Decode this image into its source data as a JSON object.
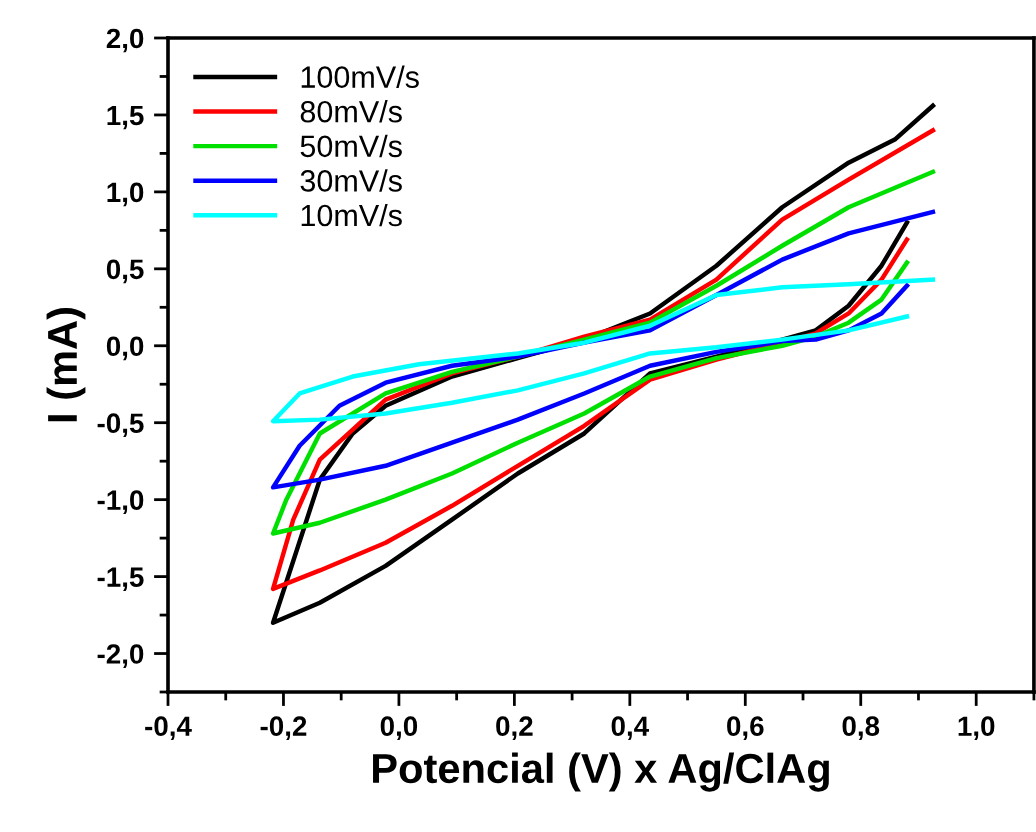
{
  "chart_data": {
    "type": "line",
    "xlabel": "Potencial (V) x Ag/ClAg",
    "ylabel": "I (mA)",
    "xlim": [
      -0.4,
      1.1
    ],
    "ylim": [
      -2.25,
      2.0
    ],
    "xticks": [
      {
        "value": -0.4,
        "label": "-0,4"
      },
      {
        "value": -0.2,
        "label": "-0,2"
      },
      {
        "value": 0.0,
        "label": "0,0"
      },
      {
        "value": 0.2,
        "label": "0,2"
      },
      {
        "value": 0.4,
        "label": "0,4"
      },
      {
        "value": 0.6,
        "label": "0,6"
      },
      {
        "value": 0.8,
        "label": "0,8"
      },
      {
        "value": 1.0,
        "label": "1,0"
      }
    ],
    "yticks": [
      {
        "value": -2.0,
        "label": "-2,0"
      },
      {
        "value": -1.5,
        "label": "-1,5"
      },
      {
        "value": -1.0,
        "label": "-1,0"
      },
      {
        "value": -0.5,
        "label": "-0,5"
      },
      {
        "value": 0.0,
        "label": "0,0"
      },
      {
        "value": 0.5,
        "label": "0,5"
      },
      {
        "value": 1.0,
        "label": "1,0"
      },
      {
        "value": 1.5,
        "label": "1,5"
      },
      {
        "value": 2.0,
        "label": "2,0"
      }
    ],
    "legend": "top left",
    "grid": false,
    "marker": "none",
    "line_style": "solid",
    "series": [
      {
        "name": "100mV/s",
        "color": "#000000",
        "x": [
          0.88,
          0.836,
          0.779,
          0.722,
          0.664,
          0.55,
          0.435,
          0.321,
          0.206,
          0.092,
          -0.023,
          -0.137,
          -0.218,
          -0.137,
          -0.08,
          -0.023,
          0.092,
          0.206,
          0.321,
          0.435,
          0.55,
          0.664,
          0.779,
          0.859,
          0.925
        ],
        "values": [
          0.8,
          0.52,
          0.26,
          0.1,
          0.04,
          -0.07,
          -0.18,
          -0.57,
          -0.83,
          -1.13,
          -1.43,
          -1.67,
          -1.8,
          -0.87,
          -0.57,
          -0.39,
          -0.2,
          -0.08,
          0.04,
          0.21,
          0.52,
          0.9,
          1.19,
          1.34,
          1.56
        ]
      },
      {
        "name": "80mV/s",
        "color": "#ff0000",
        "x": [
          0.88,
          0.836,
          0.779,
          0.722,
          0.664,
          0.55,
          0.435,
          0.321,
          0.206,
          0.092,
          -0.023,
          -0.137,
          -0.218,
          -0.183,
          -0.137,
          -0.023,
          0.092,
          0.206,
          0.321,
          0.435,
          0.55,
          0.664,
          0.779,
          0.925
        ],
        "values": [
          0.69,
          0.43,
          0.21,
          0.08,
          0.02,
          -0.09,
          -0.22,
          -0.52,
          -0.78,
          -1.04,
          -1.28,
          -1.46,
          -1.58,
          -1.13,
          -0.74,
          -0.35,
          -0.18,
          -0.07,
          0.06,
          0.17,
          0.43,
          0.82,
          1.08,
          1.4
        ]
      },
      {
        "name": "50mV/s",
        "color": "#00e000",
        "x": [
          0.88,
          0.836,
          0.779,
          0.722,
          0.664,
          0.55,
          0.435,
          0.321,
          0.206,
          0.092,
          -0.023,
          -0.137,
          -0.218,
          -0.195,
          -0.137,
          -0.023,
          0.092,
          0.206,
          0.321,
          0.435,
          0.55,
          0.664,
          0.779,
          0.925
        ],
        "values": [
          0.54,
          0.3,
          0.15,
          0.06,
          0.0,
          -0.08,
          -0.2,
          -0.44,
          -0.63,
          -0.83,
          -1.0,
          -1.15,
          -1.22,
          -1.0,
          -0.57,
          -0.31,
          -0.17,
          -0.07,
          0.04,
          0.15,
          0.39,
          0.65,
          0.9,
          1.13
        ]
      },
      {
        "name": "30mV/s",
        "color": "#0000ff",
        "x": [
          0.88,
          0.836,
          0.779,
          0.722,
          0.664,
          0.55,
          0.435,
          0.321,
          0.206,
          0.092,
          -0.023,
          -0.137,
          -0.218,
          -0.172,
          -0.103,
          -0.023,
          0.092,
          0.206,
          0.321,
          0.435,
          0.55,
          0.664,
          0.779,
          0.925
        ],
        "values": [
          0.39,
          0.21,
          0.1,
          0.04,
          0.03,
          -0.04,
          -0.13,
          -0.31,
          -0.48,
          -0.63,
          -0.78,
          -0.87,
          -0.92,
          -0.65,
          -0.39,
          -0.24,
          -0.13,
          -0.07,
          0.02,
          0.1,
          0.33,
          0.56,
          0.73,
          0.87
        ]
      },
      {
        "name": "10mV/s",
        "color": "#00ffff",
        "x": [
          0.88,
          0.779,
          0.664,
          0.55,
          0.435,
          0.321,
          0.206,
          0.092,
          -0.023,
          -0.137,
          -0.218,
          -0.172,
          -0.08,
          0.035,
          0.206,
          0.321,
          0.435,
          0.55,
          0.664,
          0.779,
          0.925
        ],
        "values": [
          0.19,
          0.1,
          0.04,
          -0.01,
          -0.05,
          -0.18,
          -0.29,
          -0.37,
          -0.44,
          -0.48,
          -0.49,
          -0.31,
          -0.2,
          -0.12,
          -0.05,
          0.02,
          0.13,
          0.33,
          0.38,
          0.4,
          0.43
        ]
      }
    ]
  }
}
